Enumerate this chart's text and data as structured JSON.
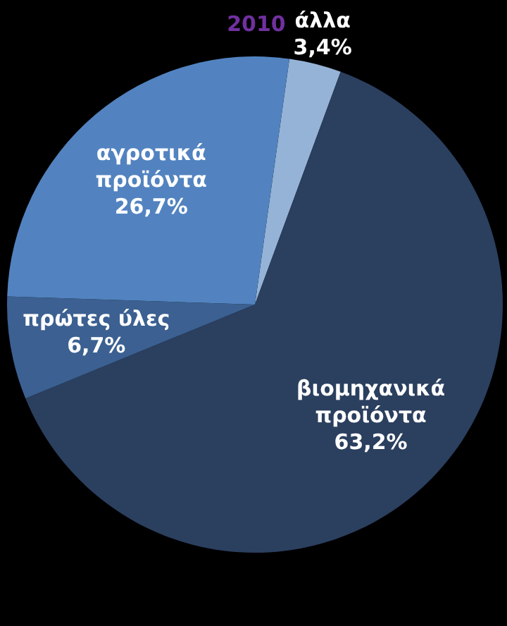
{
  "chart_data": {
    "type": "pie",
    "title": "2010",
    "categories": [
      "άλλα",
      "βιομηχανικά προϊόντα",
      "πρώτες ύλες",
      "αγροτικά προϊόντα"
    ],
    "values": [
      3.4,
      63.2,
      6.7,
      26.7
    ],
    "value_labels": [
      "3,4%",
      "63,2%",
      "6,7%",
      "26,7%"
    ],
    "colors": [
      "#95b3d7",
      "#2b3f5f",
      "#3b6091",
      "#5283c0"
    ]
  }
}
